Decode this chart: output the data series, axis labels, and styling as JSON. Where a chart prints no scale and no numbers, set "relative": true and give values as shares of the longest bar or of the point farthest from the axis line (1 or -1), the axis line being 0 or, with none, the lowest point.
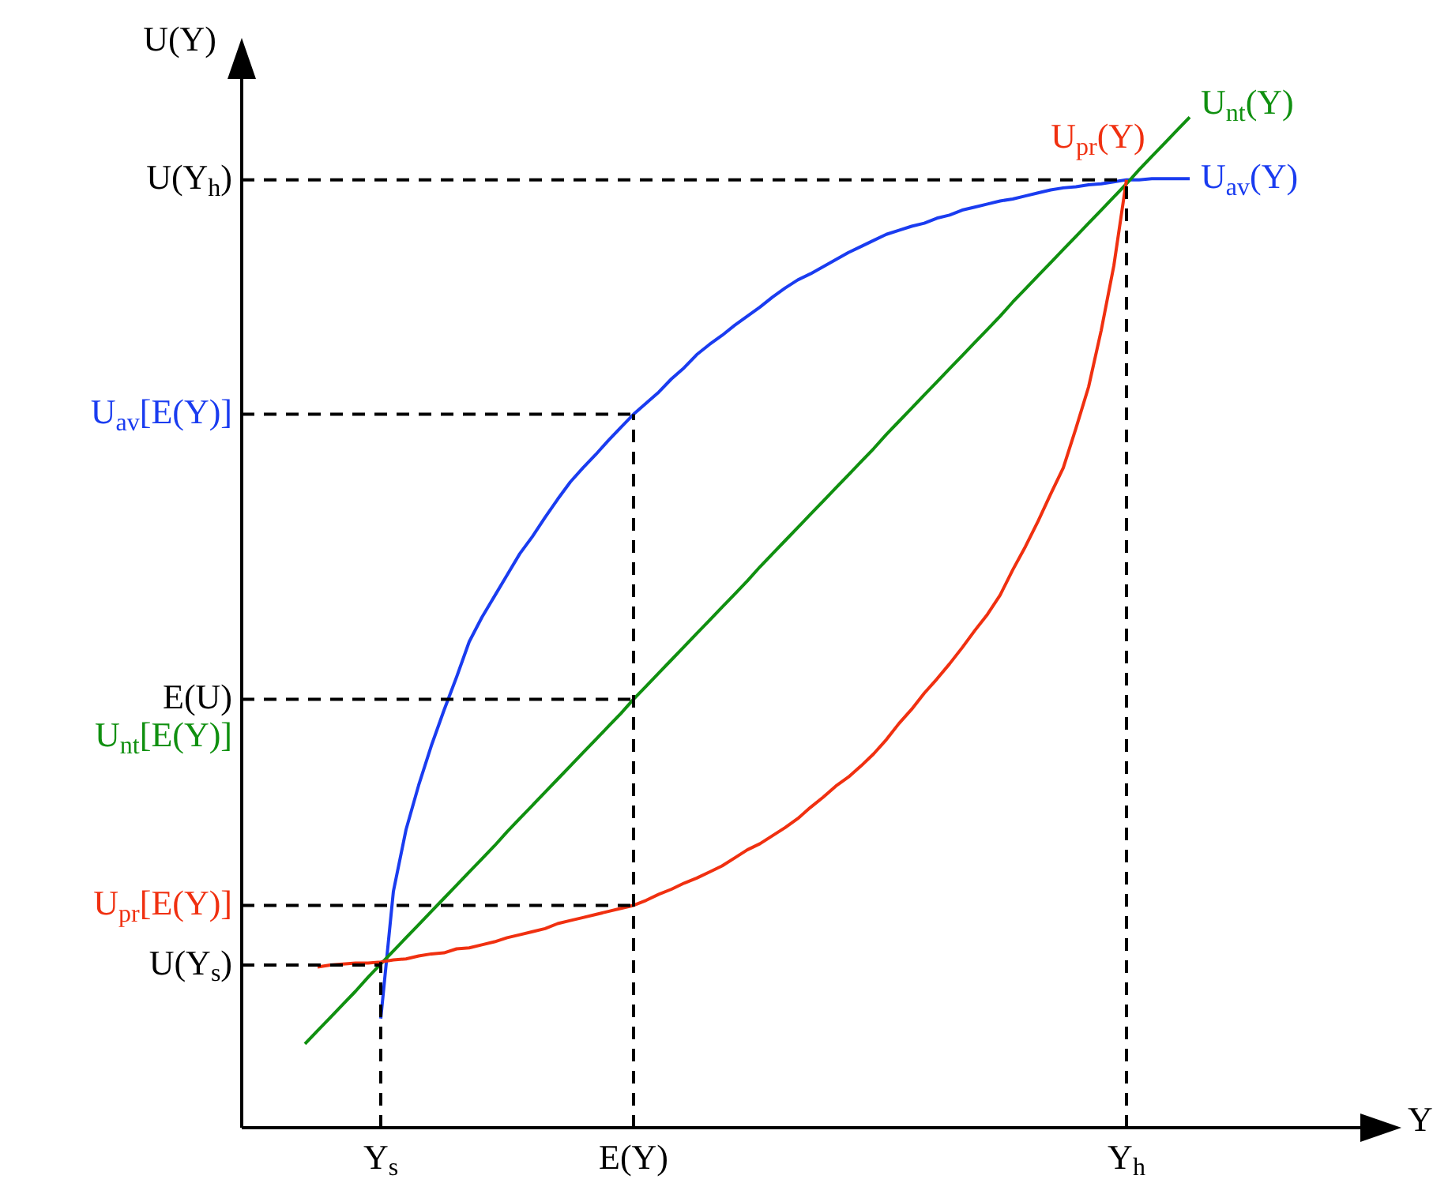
{
  "chart_data": {
    "type": "line",
    "xlabel": "Y",
    "ylabel": "U(Y)",
    "relative": true,
    "categories": [
      null,
      null,
      null,
      null,
      null,
      null,
      null,
      null,
      null,
      null,
      null,
      "Y$_{s}$",
      null,
      null,
      null,
      null,
      null,
      null,
      null,
      null,
      null,
      null,
      null,
      null,
      null,
      null,
      null,
      null,
      null,
      null,
      null,
      "E(Y)",
      null,
      null,
      null,
      null,
      null,
      null,
      null,
      null,
      null,
      null,
      null,
      null,
      null,
      null,
      null,
      null,
      null,
      null,
      null,
      null,
      null,
      null,
      null,
      null,
      null,
      null,
      null,
      null,
      null,
      null,
      null,
      null,
      null,
      null,
      null,
      null,
      null,
      null,
      "Y$_{h}$",
      null,
      null,
      null,
      null,
      null,
      null,
      null,
      null,
      null,
      null,
      null,
      null,
      null,
      null,
      null,
      null,
      null,
      null,
      null,
      null,
      null
    ],
    "ref_lines": [
      {
        "axis": "x",
        "value": "Y$_{s}$",
        "label": null,
        "line_style": "dashed"
      },
      {
        "axis": "x",
        "value": "E(Y)",
        "label": null,
        "line_style": "dashed"
      },
      {
        "axis": "x",
        "value": "Y$_{h}$",
        "label": null,
        "line_style": "dashed"
      },
      {
        "axis": "y",
        "value": 0.161,
        "label": "U(Y$_{s}$)",
        "line_style": "dashed"
      },
      {
        "axis": "y",
        "value": 0.22,
        "label": "U$_{pr}$[E(Y)]",
        "line_style": "dashed"
      },
      {
        "axis": "y",
        "value": 0.424,
        "label": "E(U)\nU$_{nt}$[E(Y)]",
        "line_style": "dashed"
      },
      {
        "axis": "y",
        "value": 0.706,
        "label": "U$_{av}$[E(Y)]",
        "line_style": "dashed"
      },
      {
        "axis": "y",
        "value": 0.938,
        "label": "U(Y$_{h}$)",
        "line_style": "dashed"
      }
    ],
    "series": [
      {
        "name": "U$_{pr}$(Y)",
        "color": "#f03010",
        "values": [
          null,
          null,
          null,
          null,
          null,
          null,
          0.159,
          0.161,
          0.162,
          0.163,
          0.163,
          0.164,
          0.166,
          0.167,
          0.17,
          0.172,
          0.173,
          0.177,
          0.178,
          0.181,
          0.184,
          0.188,
          0.191,
          0.194,
          0.197,
          0.202,
          0.205,
          0.208,
          0.211,
          0.214,
          0.217,
          0.22,
          0.225,
          0.231,
          0.236,
          0.242,
          0.247,
          0.253,
          0.259,
          0.267,
          0.275,
          0.281,
          0.289,
          0.297,
          0.306,
          0.317,
          0.327,
          0.338,
          0.347,
          0.358,
          0.37,
          0.384,
          0.4,
          0.414,
          0.43,
          0.444,
          0.459,
          0.475,
          0.492,
          0.508,
          0.527,
          0.552,
          0.575,
          0.6,
          0.627,
          0.653,
          0.692,
          0.733,
          0.789,
          0.853,
          0.938,
          null,
          null,
          null,
          null,
          null,
          null,
          null,
          null,
          null,
          null,
          null,
          null,
          null,
          null,
          null,
          null,
          null,
          null,
          null,
          null,
          null
        ]
      },
      {
        "name": "U$_{nt}$(Y)",
        "color": "#109010",
        "values": [
          null,
          null,
          null,
          null,
          null,
          0.083,
          0.096,
          0.109,
          0.122,
          0.135,
          0.149,
          0.162,
          0.175,
          0.188,
          0.201,
          0.214,
          0.227,
          0.24,
          0.253,
          0.266,
          0.279,
          0.293,
          0.306,
          0.319,
          0.332,
          0.345,
          0.358,
          0.371,
          0.384,
          0.397,
          0.41,
          0.424,
          0.437,
          0.45,
          0.463,
          0.476,
          0.489,
          0.502,
          0.515,
          0.528,
          0.541,
          0.555,
          0.568,
          0.581,
          0.594,
          0.607,
          0.62,
          0.633,
          0.646,
          0.659,
          0.672,
          0.686,
          0.699,
          0.712,
          0.725,
          0.738,
          0.751,
          0.764,
          0.777,
          0.79,
          0.803,
          0.817,
          0.83,
          0.843,
          0.856,
          0.869,
          0.882,
          0.895,
          0.908,
          0.921,
          0.934,
          0.948,
          0.961,
          0.974,
          0.987,
          1,
          null,
          null,
          null,
          null,
          null,
          null,
          null,
          null,
          null,
          null,
          null,
          null,
          null,
          null,
          null,
          null
        ]
      },
      {
        "name": "U$_{av}$(Y)",
        "color": "#1a3cf0",
        "values": [
          null,
          null,
          null,
          null,
          null,
          null,
          null,
          null,
          null,
          null,
          null,
          0.108,
          0.234,
          0.295,
          0.339,
          0.378,
          0.413,
          0.446,
          0.481,
          0.505,
          0.526,
          0.547,
          0.568,
          0.585,
          0.604,
          0.622,
          0.639,
          0.653,
          0.666,
          0.68,
          0.693,
          0.706,
          0.717,
          0.728,
          0.741,
          0.752,
          0.765,
          0.775,
          0.784,
          0.794,
          0.803,
          0.812,
          0.822,
          0.831,
          0.839,
          0.845,
          0.852,
          0.859,
          0.866,
          0.872,
          0.878,
          0.884,
          0.888,
          0.892,
          0.895,
          0.9,
          0.903,
          0.908,
          0.911,
          0.914,
          0.917,
          0.919,
          0.922,
          0.925,
          0.928,
          0.93,
          0.931,
          0.933,
          0.934,
          0.936,
          0.938,
          0.938,
          0.939,
          0.939,
          0.939,
          0.939,
          null,
          null,
          null,
          null,
          null,
          null,
          null,
          null,
          null,
          null,
          null,
          null,
          null,
          null,
          null,
          null
        ]
      }
    ],
    "grid": false,
    "legend": false,
    "marker": "none",
    "line_style": "solid"
  }
}
